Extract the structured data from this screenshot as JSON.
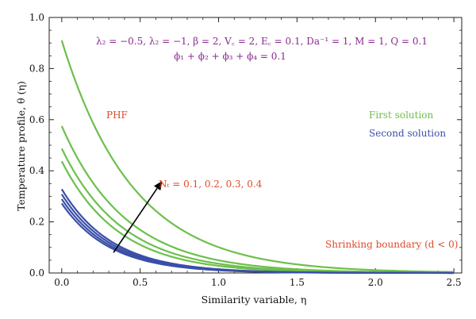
{
  "chart_data": {
    "type": "line",
    "title": "",
    "xlabel": "Similarity variable, η",
    "ylabel": "Temperature profile, θ (η)",
    "xlim": [
      -0.08,
      2.55
    ],
    "ylim": [
      0.0,
      1.0
    ],
    "x_ticks": [
      0.0,
      0.5,
      1.0,
      1.5,
      2.0,
      2.5
    ],
    "x_tick_labels": [
      "0.0",
      "0.5",
      "1.0",
      "1.5",
      "2.0",
      "2.5"
    ],
    "y_ticks": [
      0.0,
      0.2,
      0.4,
      0.6,
      0.8,
      1.0
    ],
    "y_tick_labels": [
      "0.0",
      "0.2",
      "0.4",
      "0.6",
      "0.8",
      "1.0"
    ],
    "grid": false,
    "colors": {
      "first_solution": "#6cc04a",
      "second_solution": "#3a4fa8",
      "parameters_text": "#8a2a8f",
      "label_text": "#e04b2a",
      "arrow": "#000000"
    },
    "annotations": {
      "params_line1": "λ₂ = −0.5, λ₂ = −1, β = 2, V꜀ = 2, E꜀ = 0.1, Da⁻¹ = 1, M = 1, Q = 0.1",
      "params_line2": "ϕ₁ + ϕ₂ + ϕ₃ + ϕ₄ = 0.1",
      "phf": "PHF",
      "first_solution": "First solution",
      "second_solution": "Second solution",
      "nt_label": "Nₜ = 0.1, 0.2, 0.3, 0.4",
      "shrinking": "Shrinking boundary (d < 0)"
    },
    "arrow": {
      "from": [
        0.33,
        0.08
      ],
      "to": [
        0.64,
        0.36
      ]
    },
    "series": [
      {
        "group": "first",
        "y0": 0.91,
        "decay": 2.2
      },
      {
        "group": "first",
        "y0": 0.575,
        "decay": 2.45
      },
      {
        "group": "first",
        "y0": 0.487,
        "decay": 2.6
      },
      {
        "group": "first",
        "y0": 0.437,
        "decay": 2.75
      },
      {
        "group": "second",
        "y0": 0.328,
        "decay": 3.1
      },
      {
        "group": "second",
        "y0": 0.308,
        "decay": 3.15
      },
      {
        "group": "second",
        "y0": 0.289,
        "decay": 3.2
      },
      {
        "group": "second",
        "y0": 0.272,
        "decay": 3.25
      }
    ]
  }
}
